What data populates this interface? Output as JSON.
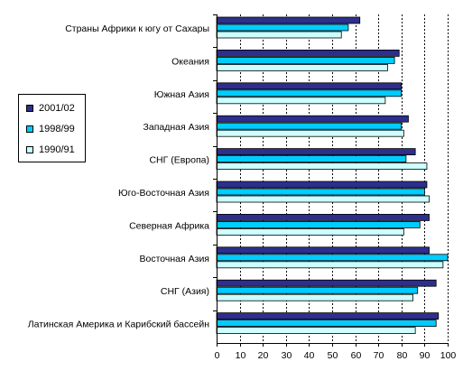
{
  "chart_data": {
    "type": "bar",
    "orientation": "horizontal",
    "categories": [
      "Страны Африки к югу от Сахары",
      "Океания",
      "Южная Азия",
      "Западная Азия",
      "СНГ (Европа)",
      "Юго-Восточная Азия",
      "Северная Африка",
      "Восточная Азия",
      "СНГ (Азия)",
      "Латинская Америка и Карибский бассейн"
    ],
    "series": [
      {
        "name": "2001/02",
        "color": "#2e2e8c",
        "values": [
          62,
          79,
          80,
          83,
          86,
          91,
          92,
          92,
          95,
          96
        ]
      },
      {
        "name": "1998/99",
        "color": "#00ccff",
        "values": [
          57,
          77,
          80,
          80,
          82,
          90,
          88,
          100,
          87,
          95
        ]
      },
      {
        "name": "1990/91",
        "color": "#ccffff",
        "values": [
          54,
          74,
          73,
          81,
          91,
          92,
          81,
          98,
          85,
          86
        ]
      }
    ],
    "xlim": [
      0,
      100
    ],
    "xticks": [
      "0",
      "10",
      "20",
      "30",
      "40",
      "50",
      "60",
      "70",
      "80",
      "90",
      "100"
    ],
    "grid": "vertical-dashed",
    "legend_position": "left",
    "title": "",
    "xlabel": "",
    "ylabel": ""
  }
}
